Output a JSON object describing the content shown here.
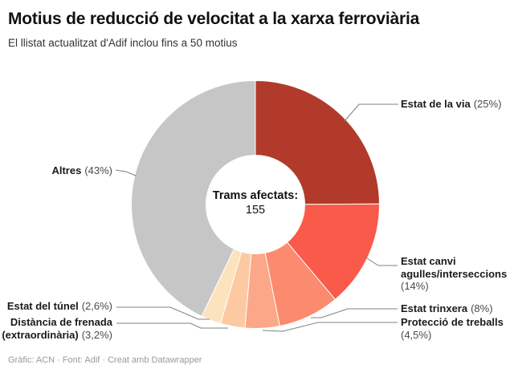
{
  "header": {
    "title": "Motius de reducció de velocitat a la xarxa ferroviària",
    "subtitle": "El llistat actualitzat d'Adif inclou fins a 50 motius"
  },
  "chart_data": {
    "type": "pie",
    "subtype": "donut",
    "title": "Motius de reducció de velocitat a la xarxa ferroviària",
    "center_label": "Trams afectats:",
    "center_value": "155",
    "start_angle_deg": 0,
    "direction": "clockwise",
    "slices": [
      {
        "label": "Estat de la via",
        "pct_label": "(25%)",
        "value": 25,
        "color": "#b13a2b"
      },
      {
        "label": "Estat canvi\nagulles/interseccions",
        "pct_label": "(14%)",
        "value": 14,
        "color": "#fa5a49"
      },
      {
        "label": "Estat trinxera",
        "pct_label": "(8%)",
        "value": 8,
        "color": "#fc8a6e"
      },
      {
        "label": "Protecció de treballs",
        "pct_label": "(4,5%)",
        "value": 4.5,
        "color": "#fca787"
      },
      {
        "label": "Distància de frenada\n(extraordinària)",
        "pct_label": "(3,2%)",
        "value": 3.2,
        "color": "#fdc9a3"
      },
      {
        "label": "Estat del túnel",
        "pct_label": "(2,6%)",
        "value": 2.6,
        "color": "#fce2bd"
      },
      {
        "label": "Altres",
        "pct_label": "(43%)",
        "value": 43,
        "color": "#c6c6c6"
      }
    ]
  },
  "footer": {
    "text": "Gràfic: ACN · Font: Adif · Creat amb Datawrapper"
  }
}
